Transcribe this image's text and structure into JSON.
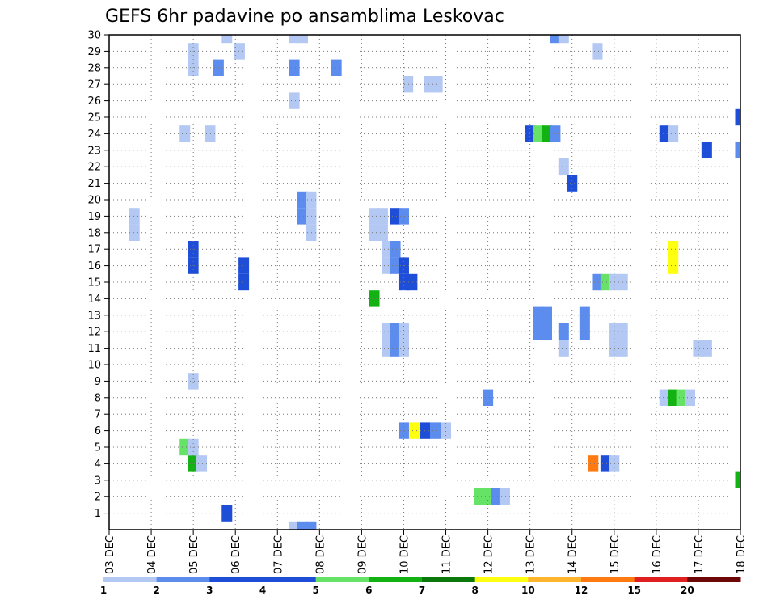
{
  "chart_data": {
    "type": "heatmap",
    "title": "GEFS 6hr padavine po ansamblima Leskovac",
    "xlabel": "",
    "ylabel": "",
    "x_tick_labels": [
      "03 DEC",
      "04 DEC",
      "05 DEC",
      "06 DEC",
      "07 DEC",
      "08 DEC",
      "09 DEC",
      "10 DEC",
      "11 DEC",
      "12 DEC",
      "13 DEC",
      "14 DEC",
      "15 DEC",
      "16 DEC",
      "17 DEC",
      "18 DEC"
    ],
    "xlim_days": [
      0,
      15
    ],
    "y_tick_labels": [
      "1",
      "2",
      "3",
      "4",
      "5",
      "6",
      "7",
      "8",
      "9",
      "10",
      "11",
      "12",
      "13",
      "14",
      "15",
      "16",
      "17",
      "18",
      "19",
      "20",
      "21",
      "22",
      "23",
      "24",
      "25",
      "26",
      "27",
      "28",
      "29",
      "30"
    ],
    "ylim": [
      0,
      30
    ],
    "grid": true,
    "colorbar": {
      "labels": [
        "1",
        "2",
        "3",
        "4",
        "5",
        "6",
        "7",
        "8",
        "10",
        "12",
        "15",
        "20"
      ],
      "colors": [
        "#b4c8f4",
        "#5c8cee",
        "#1e4ed8",
        "#1e4ed8",
        "#66e266",
        "#12b212",
        "#0a780a",
        "#ffff10",
        "#ffb42e",
        "#ff7a10",
        "#e02020",
        "#6e0808"
      ]
    },
    "cells": [
      {
        "t": 2.8,
        "m": 1,
        "v": 3
      },
      {
        "t": 8.8,
        "m": 2,
        "v": 5
      },
      {
        "t": 9.0,
        "m": 2,
        "v": 5
      },
      {
        "t": 9.2,
        "m": 2,
        "v": 2
      },
      {
        "t": 9.4,
        "m": 2,
        "v": 1
      },
      {
        "t": 15.0,
        "m": 3,
        "v": 6
      },
      {
        "t": 2.0,
        "m": 4,
        "v": 6
      },
      {
        "t": 2.2,
        "m": 4,
        "v": 1
      },
      {
        "t": 11.5,
        "m": 4,
        "v": 10
      },
      {
        "t": 11.8,
        "m": 4,
        "v": 3
      },
      {
        "t": 12.0,
        "m": 4,
        "v": 1
      },
      {
        "t": 1.8,
        "m": 5,
        "v": 5
      },
      {
        "t": 2.0,
        "m": 5,
        "v": 1
      },
      {
        "t": 7.0,
        "m": 6,
        "v": 2
      },
      {
        "t": 7.25,
        "m": 6,
        "v": 8
      },
      {
        "t": 7.5,
        "m": 6,
        "v": 3
      },
      {
        "t": 7.75,
        "m": 6,
        "v": 2
      },
      {
        "t": 8.0,
        "m": 6,
        "v": 1
      },
      {
        "t": 9.0,
        "m": 8,
        "v": 2
      },
      {
        "t": 13.2,
        "m": 8,
        "v": 1
      },
      {
        "t": 13.4,
        "m": 8,
        "v": 6
      },
      {
        "t": 13.6,
        "m": 8,
        "v": 5
      },
      {
        "t": 13.8,
        "m": 8,
        "v": 1
      },
      {
        "t": 2.0,
        "m": 9,
        "v": 1
      },
      {
        "t": 6.6,
        "m": 11,
        "v": 1
      },
      {
        "t": 6.8,
        "m": 11,
        "v": 2
      },
      {
        "t": 7.0,
        "m": 11,
        "v": 1
      },
      {
        "t": 10.8,
        "m": 11,
        "v": 1
      },
      {
        "t": 12.0,
        "m": 11,
        "v": 1
      },
      {
        "t": 12.2,
        "m": 11,
        "v": 1
      },
      {
        "t": 14.0,
        "m": 11,
        "v": 1
      },
      {
        "t": 14.2,
        "m": 11,
        "v": 1
      },
      {
        "t": 6.6,
        "m": 12,
        "v": 1
      },
      {
        "t": 6.8,
        "m": 12,
        "v": 2
      },
      {
        "t": 7.0,
        "m": 12,
        "v": 1
      },
      {
        "t": 10.2,
        "m": 12,
        "v": 2
      },
      {
        "t": 10.4,
        "m": 12,
        "v": 2
      },
      {
        "t": 10.8,
        "m": 12,
        "v": 2
      },
      {
        "t": 11.3,
        "m": 12,
        "v": 2
      },
      {
        "t": 12.0,
        "m": 12,
        "v": 1
      },
      {
        "t": 12.2,
        "m": 12,
        "v": 1
      },
      {
        "t": 10.2,
        "m": 13,
        "v": 2
      },
      {
        "t": 10.4,
        "m": 13,
        "v": 2
      },
      {
        "t": 11.3,
        "m": 13,
        "v": 2
      },
      {
        "t": 6.3,
        "m": 14,
        "v": 6
      },
      {
        "t": 11.6,
        "m": 15,
        "v": 2
      },
      {
        "t": 11.8,
        "m": 15,
        "v": 5
      },
      {
        "t": 12.0,
        "m": 15,
        "v": 1
      },
      {
        "t": 12.2,
        "m": 15,
        "v": 1
      },
      {
        "t": 3.2,
        "m": 15,
        "v": 3
      },
      {
        "t": 7.0,
        "m": 15,
        "v": 3
      },
      {
        "t": 7.2,
        "m": 15,
        "v": 3
      },
      {
        "t": 2.0,
        "m": 16,
        "v": 3
      },
      {
        "t": 3.2,
        "m": 16,
        "v": 3
      },
      {
        "t": 6.6,
        "m": 16,
        "v": 1
      },
      {
        "t": 6.8,
        "m": 16,
        "v": 2
      },
      {
        "t": 7.0,
        "m": 16,
        "v": 3
      },
      {
        "t": 13.4,
        "m": 16,
        "v": 8
      },
      {
        "t": 2.0,
        "m": 17,
        "v": 3
      },
      {
        "t": 6.6,
        "m": 17,
        "v": 1
      },
      {
        "t": 6.8,
        "m": 17,
        "v": 2
      },
      {
        "t": 13.4,
        "m": 17,
        "v": 8
      },
      {
        "t": 0.6,
        "m": 18,
        "v": 1
      },
      {
        "t": 4.8,
        "m": 18,
        "v": 1
      },
      {
        "t": 6.3,
        "m": 18,
        "v": 1
      },
      {
        "t": 6.5,
        "m": 18,
        "v": 1
      },
      {
        "t": 0.6,
        "m": 19,
        "v": 1
      },
      {
        "t": 4.6,
        "m": 19,
        "v": 2
      },
      {
        "t": 4.8,
        "m": 19,
        "v": 1
      },
      {
        "t": 6.3,
        "m": 19,
        "v": 1
      },
      {
        "t": 6.5,
        "m": 19,
        "v": 1
      },
      {
        "t": 6.8,
        "m": 19,
        "v": 3
      },
      {
        "t": 7.0,
        "m": 19,
        "v": 2
      },
      {
        "t": 4.6,
        "m": 20,
        "v": 2
      },
      {
        "t": 4.8,
        "m": 20,
        "v": 1
      },
      {
        "t": 11.0,
        "m": 21,
        "v": 3
      },
      {
        "t": 10.8,
        "m": 22,
        "v": 1
      },
      {
        "t": 14.2,
        "m": 23,
        "v": 3
      },
      {
        "t": 15.0,
        "m": 23,
        "v": 2
      },
      {
        "t": 1.8,
        "m": 24,
        "v": 1
      },
      {
        "t": 2.4,
        "m": 24,
        "v": 1
      },
      {
        "t": 10.0,
        "m": 24,
        "v": 3
      },
      {
        "t": 10.2,
        "m": 24,
        "v": 5
      },
      {
        "t": 10.4,
        "m": 24,
        "v": 6
      },
      {
        "t": 10.6,
        "m": 24,
        "v": 2
      },
      {
        "t": 13.2,
        "m": 24,
        "v": 3
      },
      {
        "t": 13.4,
        "m": 24,
        "v": 1
      },
      {
        "t": 15.0,
        "m": 25,
        "v": 3
      },
      {
        "t": 4.4,
        "m": 26,
        "v": 1
      },
      {
        "t": 7.1,
        "m": 27,
        "v": 1
      },
      {
        "t": 7.6,
        "m": 27,
        "v": 1
      },
      {
        "t": 7.8,
        "m": 27,
        "v": 1
      },
      {
        "t": 2.0,
        "m": 28,
        "v": 1
      },
      {
        "t": 2.6,
        "m": 28,
        "v": 2
      },
      {
        "t": 4.4,
        "m": 28,
        "v": 2
      },
      {
        "t": 5.4,
        "m": 28,
        "v": 2
      },
      {
        "t": 2.0,
        "m": 29,
        "v": 1
      },
      {
        "t": 3.1,
        "m": 29,
        "v": 1
      },
      {
        "t": 11.6,
        "m": 29,
        "v": 1
      },
      {
        "t": 2.8,
        "m": 30,
        "v": 1
      },
      {
        "t": 4.4,
        "m": 30,
        "v": 1
      },
      {
        "t": 4.6,
        "m": 30,
        "v": 1
      },
      {
        "t": 10.6,
        "m": 30,
        "v": 2
      },
      {
        "t": 10.8,
        "m": 30,
        "v": 1
      },
      {
        "t": 4.4,
        "m": 0,
        "v": 1
      },
      {
        "t": 4.6,
        "m": 0,
        "v": 2
      },
      {
        "t": 4.8,
        "m": 0,
        "v": 2
      }
    ]
  }
}
